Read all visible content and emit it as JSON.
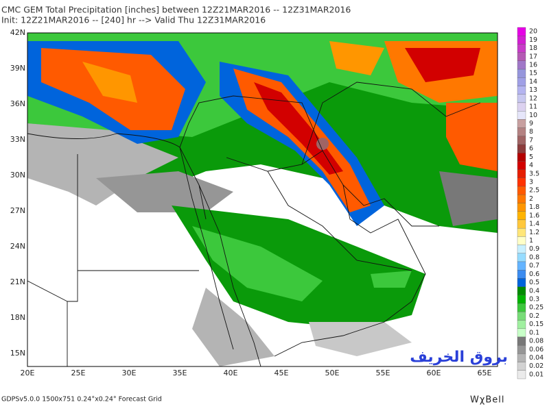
{
  "header": {
    "title": "CMC GEM Total Precipitation [inches] between 12Z21MAR2016 -- 12Z31MAR2016",
    "subtitle": "Init: 12Z21MAR2016 -- [240] hr --> Valid Thu 12Z31MAR2016"
  },
  "map": {
    "lat_labels": [
      "42N",
      "39N",
      "36N",
      "33N",
      "30N",
      "27N",
      "24N",
      "21N",
      "18N",
      "15N"
    ],
    "lon_labels": [
      "20E",
      "25E",
      "30E",
      "35E",
      "40E",
      "45E",
      "50E",
      "55E",
      "60E",
      "65E"
    ]
  },
  "colorbar": {
    "labels": [
      "20",
      "19",
      "18",
      "17",
      "16",
      "15",
      "14",
      "13",
      "12",
      "11",
      "10",
      "9",
      "8",
      "7",
      "6",
      "5",
      "4",
      "3.5",
      "3",
      "2.5",
      "2",
      "1.8",
      "1.6",
      "1.4",
      "1.2",
      "1",
      "0.9",
      "0.8",
      "0.7",
      "0.6",
      "0.5",
      "0.4",
      "0.3",
      "0.25",
      "0.2",
      "0.15",
      "0.1",
      "0.08",
      "0.06",
      "0.04",
      "0.02",
      "0.01"
    ],
    "colors": [
      "#e600e6",
      "#d21ed2",
      "#c83cc8",
      "#b45ab4",
      "#a078c8",
      "#9696dc",
      "#a0a0e6",
      "#b4b4f0",
      "#c8c8f0",
      "#dcd2f0",
      "#e6e6fa",
      "#c8a0a0",
      "#b48282",
      "#a06464",
      "#8c3c3c",
      "#b40000",
      "#d20000",
      "#e61e00",
      "#ff3200",
      "#ff5a00",
      "#ff7800",
      "#ff9600",
      "#ffb400",
      "#ffc83c",
      "#ffe678",
      "#ffffc8",
      "#c8f0ff",
      "#96dcff",
      "#64b4ff",
      "#3c8cf0",
      "#0064dc",
      "#008c00",
      "#00b400",
      "#3cc83c",
      "#78dc78",
      "#a0f0a0",
      "#c8ffc8",
      "#787878",
      "#969696",
      "#b4b4b4",
      "#d2d2d2",
      "#ebebeb"
    ]
  },
  "footer": {
    "grid_info": "GDPSv5.0.0 1500x751 0.24°x0.24° Forecast Grid",
    "logo": "WχBell",
    "watermark": "بروق الخريف"
  }
}
